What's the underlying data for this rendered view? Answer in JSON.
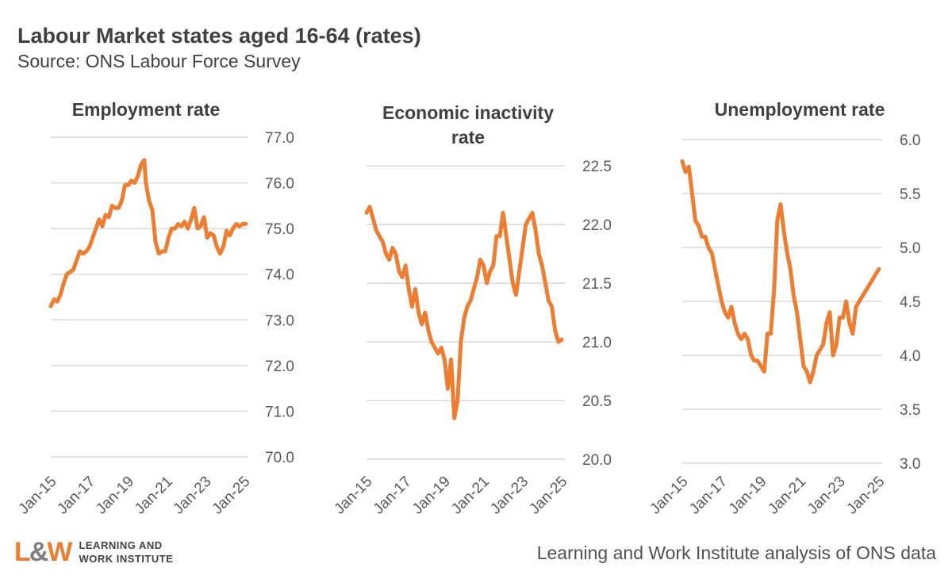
{
  "header": {
    "title": "Labour Market states aged 16-64 (rates)",
    "subtitle": "Source: ONS Labour Force Survey"
  },
  "footer": {
    "logo_mark": "L&W",
    "logo_line1": "LEARNING AND",
    "logo_line2": "WORK INSTITUTE",
    "credit": "Learning and Work Institute analysis of ONS data"
  },
  "colors": {
    "series": "#ed7d31",
    "grid": "#d9d9d9",
    "text": "#404040"
  },
  "chart_data": [
    {
      "type": "line",
      "title": "Employment rate",
      "x_tick_labels": [
        "Jan-15",
        "Jan-17",
        "Jan-19",
        "Jan-21",
        "Jan-23",
        "Jan-25"
      ],
      "x_range": [
        "Jan-15",
        "Jan-25"
      ],
      "ylim": [
        70.0,
        77.0
      ],
      "y_ticks": [
        "77.0",
        "76.0",
        "75.0",
        "74.0",
        "73.0",
        "72.0",
        "71.0",
        "70.0"
      ],
      "y_axis_side": "right",
      "grid": true,
      "series": [
        {
          "x": [
            "2015-01",
            "2015-03",
            "2015-05",
            "2015-07",
            "2015-09",
            "2015-11",
            "2016-01",
            "2016-03",
            "2016-05",
            "2016-07",
            "2016-09",
            "2016-11",
            "2017-01",
            "2017-03",
            "2017-05",
            "2017-07",
            "2017-09",
            "2017-11",
            "2018-01",
            "2018-03",
            "2018-05",
            "2018-07",
            "2018-09",
            "2018-11",
            "2019-01",
            "2019-03",
            "2019-05",
            "2019-07",
            "2019-09",
            "2019-11",
            "2019-12",
            "2020-02",
            "2020-04",
            "2020-06",
            "2020-08",
            "2020-10",
            "2020-12",
            "2021-02",
            "2021-04",
            "2021-06",
            "2021-08",
            "2021-10",
            "2021-12",
            "2022-02",
            "2022-04",
            "2022-06",
            "2022-08",
            "2022-10",
            "2022-12",
            "2023-02",
            "2023-04",
            "2023-06",
            "2023-08",
            "2023-10",
            "2023-12",
            "2024-02",
            "2024-04",
            "2024-06",
            "2024-08",
            "2024-10",
            "2024-12",
            "2025-02"
          ],
          "y": [
            73.3,
            73.45,
            73.4,
            73.55,
            73.8,
            74.0,
            74.05,
            74.1,
            74.3,
            74.5,
            74.45,
            74.5,
            74.6,
            74.8,
            75.0,
            75.2,
            75.05,
            75.3,
            75.25,
            75.5,
            75.45,
            75.45,
            75.6,
            75.95,
            75.95,
            76.05,
            76.0,
            76.15,
            76.4,
            76.5,
            76.0,
            75.6,
            75.4,
            74.7,
            74.45,
            74.5,
            74.5,
            74.8,
            75.0,
            75.0,
            75.1,
            75.05,
            75.15,
            75.0,
            75.2,
            75.45,
            75.0,
            75.05,
            75.25,
            74.8,
            74.9,
            74.85,
            74.6,
            74.45,
            74.6,
            74.95,
            74.85,
            75.0,
            75.1,
            75.05,
            75.1,
            75.1
          ]
        }
      ]
    },
    {
      "type": "line",
      "title": "Economic inactivity rate",
      "x_tick_labels": [
        "Jan-15",
        "Jan-17",
        "Jan-19",
        "Jan-21",
        "Jan-23",
        "Jan-25"
      ],
      "x_range": [
        "Jan-15",
        "Jan-25"
      ],
      "ylim": [
        20.0,
        22.5
      ],
      "y_ticks": [
        "22.5",
        "22.0",
        "21.5",
        "21.0",
        "20.5",
        "20.0"
      ],
      "y_axis_side": "right",
      "grid": true,
      "series": [
        {
          "x": [
            "2015-01",
            "2015-03",
            "2015-05",
            "2015-07",
            "2015-09",
            "2015-11",
            "2016-01",
            "2016-03",
            "2016-05",
            "2016-07",
            "2016-09",
            "2016-11",
            "2017-01",
            "2017-03",
            "2017-05",
            "2017-07",
            "2017-09",
            "2017-11",
            "2018-01",
            "2018-03",
            "2018-05",
            "2018-07",
            "2018-09",
            "2018-11",
            "2019-01",
            "2019-03",
            "2019-05",
            "2019-07",
            "2019-09",
            "2019-11",
            "2020-01",
            "2020-03",
            "2020-05",
            "2020-07",
            "2020-09",
            "2020-11",
            "2021-01",
            "2021-03",
            "2021-05",
            "2021-07",
            "2021-09",
            "2021-11",
            "2022-01",
            "2022-03",
            "2022-05",
            "2022-07",
            "2022-09",
            "2022-11",
            "2023-01",
            "2023-03",
            "2023-05",
            "2023-07",
            "2023-09",
            "2023-11",
            "2024-01",
            "2024-03",
            "2024-05",
            "2024-07",
            "2024-09",
            "2024-11",
            "2025-01"
          ],
          "y": [
            22.1,
            22.15,
            22.05,
            21.95,
            21.9,
            21.85,
            21.75,
            21.7,
            21.8,
            21.75,
            21.6,
            21.55,
            21.65,
            21.45,
            21.3,
            21.45,
            21.25,
            21.15,
            21.25,
            21.1,
            21.0,
            20.95,
            20.9,
            20.95,
            20.85,
            20.6,
            20.85,
            20.35,
            20.5,
            21.0,
            21.2,
            21.3,
            21.35,
            21.45,
            21.55,
            21.7,
            21.65,
            21.5,
            21.6,
            21.65,
            21.9,
            21.9,
            22.1,
            21.9,
            21.7,
            21.5,
            21.4,
            21.6,
            21.8,
            22.0,
            22.05,
            22.1,
            21.95,
            21.75,
            21.65,
            21.5,
            21.35,
            21.3,
            21.1,
            21.0,
            21.02
          ]
        }
      ]
    },
    {
      "type": "line",
      "title": "Unemployment rate",
      "x_tick_labels": [
        "Jan-15",
        "Jan-17",
        "Jan-19",
        "Jan-21",
        "Jan-23",
        "Jan-25"
      ],
      "x_range": [
        "Jan-15",
        "Jan-25"
      ],
      "ylim": [
        3.0,
        6.0
      ],
      "y_ticks": [
        "6.0",
        "5.5",
        "5.0",
        "4.5",
        "4.0",
        "3.5",
        "3.0"
      ],
      "y_axis_side": "right",
      "grid": true,
      "series": [
        {
          "x": [
            "2015-01",
            "2015-03",
            "2015-05",
            "2015-07",
            "2015-09",
            "2015-11",
            "2016-01",
            "2016-03",
            "2016-05",
            "2016-07",
            "2016-09",
            "2016-11",
            "2017-01",
            "2017-03",
            "2017-05",
            "2017-07",
            "2017-09",
            "2017-11",
            "2018-01",
            "2018-03",
            "2018-05",
            "2018-07",
            "2018-09",
            "2018-11",
            "2019-01",
            "2019-03",
            "2019-05",
            "2019-07",
            "2019-09",
            "2019-11",
            "2020-01",
            "2020-03",
            "2020-05",
            "2020-07",
            "2020-09",
            "2020-11",
            "2021-01",
            "2021-03",
            "2021-05",
            "2021-07",
            "2021-09",
            "2021-11",
            "2022-01",
            "2022-03",
            "2022-05",
            "2022-07",
            "2022-09",
            "2022-11",
            "2023-01",
            "2023-03",
            "2023-05",
            "2023-07",
            "2023-09",
            "2023-11",
            "2024-01",
            "2024-03",
            "2024-05",
            "2024-07",
            "2024-09",
            "2024-11",
            "2025-01"
          ],
          "y": [
            5.8,
            5.7,
            5.75,
            5.5,
            5.25,
            5.2,
            5.1,
            5.1,
            5.0,
            4.95,
            4.8,
            4.65,
            4.5,
            4.4,
            4.35,
            4.45,
            4.3,
            4.2,
            4.15,
            4.2,
            4.15,
            4.0,
            3.95,
            3.95,
            3.9,
            3.85,
            4.2,
            4.2,
            4.6,
            5.25,
            5.4,
            5.15,
            4.95,
            4.8,
            4.55,
            4.4,
            4.15,
            3.9,
            3.85,
            3.75,
            3.85,
            4.0,
            4.05,
            4.1,
            4.3,
            4.4,
            4.0,
            4.1,
            4.35,
            4.35,
            4.5,
            4.3,
            4.2,
            4.45,
            4.5,
            4.55,
            4.6,
            4.65,
            4.7,
            4.75,
            4.8
          ]
        }
      ]
    }
  ]
}
